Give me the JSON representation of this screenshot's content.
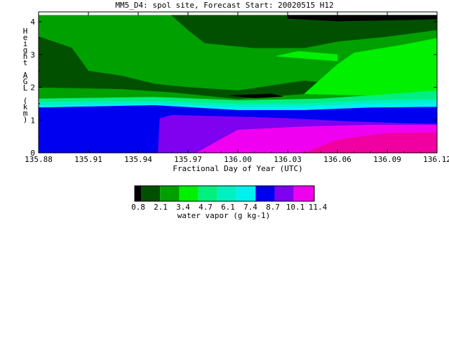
{
  "chart_data": {
    "type": "heatmap",
    "title": "MM5_D4: spol site,  Forecast Start: 20020515 H12",
    "xlabel": "Fractional Day of Year (UTC)",
    "ylabel": "Height AGL (km)",
    "xlim": [
      135.88,
      136.12
    ],
    "ylim": [
      0,
      4.3
    ],
    "x_ticks": [
      "135.88",
      "135.91",
      "135.94",
      "135.97",
      "136.00",
      "136.03",
      "136.06",
      "136.09",
      "136.12"
    ],
    "y_ticks": [
      "0",
      "1",
      "2",
      "3",
      "4"
    ],
    "colorbar": {
      "label": "water vapor (g kg-1)",
      "tick_labels": [
        "0.8",
        "2.1",
        "3.4",
        "4.7",
        "6.1",
        "7.4",
        "8.7",
        "10.1",
        "11.4"
      ],
      "colors": [
        "#000000",
        "#005000",
        "#00a000",
        "#00f000",
        "#00f080",
        "#00f0c0",
        "#00f0f0",
        "#0000f0",
        "#8000f0",
        "#f000f0",
        "#f000a0"
      ]
    },
    "regions": [
      {
        "name": "2.1-3.4 base",
        "color": "#00a000",
        "polygon": [
          [
            135.88,
            4.2
          ],
          [
            136.12,
            4.2
          ],
          [
            136.12,
            1.3
          ],
          [
            135.88,
            1.3
          ]
        ]
      },
      {
        "name": "1.5-2.1 top",
        "color": "#005000",
        "polygon": [
          [
            136.01,
            4.2
          ],
          [
            136.12,
            4.2
          ],
          [
            136.12,
            3.75
          ],
          [
            136.09,
            3.55
          ],
          [
            136.06,
            3.4
          ],
          [
            136.04,
            3.2
          ],
          [
            136.01,
            3.2
          ],
          [
            135.98,
            3.35
          ],
          [
            135.97,
            3.75
          ],
          [
            135.96,
            4.2
          ]
        ]
      },
      {
        "name": "0.8-1.5 top",
        "color": "#000000",
        "polygon": [
          [
            136.03,
            4.2
          ],
          [
            136.12,
            4.2
          ],
          [
            136.12,
            4.08
          ],
          [
            136.06,
            4.02
          ],
          [
            136.03,
            4.1
          ]
        ]
      },
      {
        "name": "1.5-2.1 mid-band",
        "color": "#005000",
        "polygon": [
          [
            135.88,
            3.55
          ],
          [
            135.9,
            3.2
          ],
          [
            135.91,
            2.5
          ],
          [
            135.93,
            2.35
          ],
          [
            135.95,
            2.1
          ],
          [
            135.97,
            2.0
          ],
          [
            136.0,
            1.9
          ],
          [
            136.04,
            2.2
          ],
          [
            136.05,
            2.15
          ],
          [
            136.04,
            1.8
          ],
          [
            136.0,
            1.65
          ],
          [
            135.96,
            1.85
          ],
          [
            135.93,
            1.95
          ],
          [
            135.88,
            2.0
          ]
        ]
      },
      {
        "name": "0.8-1.5 mid",
        "color": "#000000",
        "polygon": [
          [
            135.995,
            1.75
          ],
          [
            136.02,
            1.8
          ],
          [
            136.027,
            1.72
          ],
          [
            136.01,
            1.67
          ]
        ]
      },
      {
        "name": "3.4-4.7 right",
        "color": "#00f000",
        "polygon": [
          [
            136.12,
            3.5
          ],
          [
            136.1,
            3.3
          ],
          [
            136.07,
            3.05
          ],
          [
            136.06,
            2.7
          ],
          [
            136.05,
            2.25
          ],
          [
            136.04,
            1.8
          ],
          [
            136.12,
            1.7
          ]
        ]
      },
      {
        "name": "3.4-4.7 small",
        "color": "#00f000",
        "polygon": [
          [
            136.023,
            2.95
          ],
          [
            136.036,
            3.1
          ],
          [
            136.06,
            3.0
          ],
          [
            136.06,
            2.8
          ],
          [
            136.035,
            2.9
          ]
        ]
      },
      {
        "name": "4.7-6.1",
        "color": "#00f080",
        "polygon": [
          [
            135.88,
            1.65
          ],
          [
            135.95,
            1.7
          ],
          [
            136.0,
            1.6
          ],
          [
            136.05,
            1.65
          ],
          [
            136.08,
            1.75
          ],
          [
            136.12,
            1.9
          ],
          [
            136.12,
            1.0
          ],
          [
            135.88,
            1.0
          ]
        ]
      },
      {
        "name": "6.1-7.4",
        "color": "#00f0c0",
        "polygon": [
          [
            135.88,
            1.55
          ],
          [
            135.95,
            1.58
          ],
          [
            136.0,
            1.5
          ],
          [
            136.04,
            1.5
          ],
          [
            136.08,
            1.6
          ],
          [
            136.12,
            1.65
          ],
          [
            136.12,
            1.0
          ],
          [
            135.88,
            1.0
          ]
        ]
      },
      {
        "name": "7.4-8.7",
        "color": "#00f0f0",
        "polygon": [
          [
            135.88,
            1.45
          ],
          [
            135.95,
            1.5
          ],
          [
            136.0,
            1.4
          ],
          [
            136.04,
            1.42
          ],
          [
            136.08,
            1.5
          ],
          [
            136.12,
            1.55
          ],
          [
            136.12,
            1.0
          ],
          [
            135.88,
            1.0
          ]
        ]
      },
      {
        "name": "8.7-10.1",
        "color": "#0000f0",
        "polygon": [
          [
            135.88,
            1.38
          ],
          [
            135.95,
            1.45
          ],
          [
            136.0,
            1.3
          ],
          [
            136.04,
            1.3
          ],
          [
            136.08,
            1.38
          ],
          [
            136.12,
            1.4
          ],
          [
            136.12,
            0
          ],
          [
            135.88,
            0
          ]
        ]
      },
      {
        "name": "10.1-11.4 purple",
        "color": "#8000f0",
        "polygon": [
          [
            135.952,
            0
          ],
          [
            135.953,
            1.05
          ],
          [
            135.96,
            1.15
          ],
          [
            136.0,
            1.1
          ],
          [
            136.03,
            1.05
          ],
          [
            136.07,
            0.95
          ],
          [
            136.1,
            0.9
          ],
          [
            136.12,
            0.88
          ],
          [
            136.12,
            0
          ],
          [
            135.97,
            0
          ]
        ]
      },
      {
        "name": "magenta",
        "color": "#f000f0",
        "polygon": [
          [
            135.975,
            0
          ],
          [
            136.0,
            0.7
          ],
          [
            136.04,
            0.8
          ],
          [
            136.08,
            0.85
          ],
          [
            136.12,
            0.85
          ],
          [
            136.12,
            0
          ]
        ]
      },
      {
        "name": "pink",
        "color": "#f000a0",
        "polygon": [
          [
            136.04,
            0
          ],
          [
            136.06,
            0.4
          ],
          [
            136.09,
            0.6
          ],
          [
            136.12,
            0.62
          ],
          [
            136.12,
            0
          ]
        ]
      }
    ]
  }
}
